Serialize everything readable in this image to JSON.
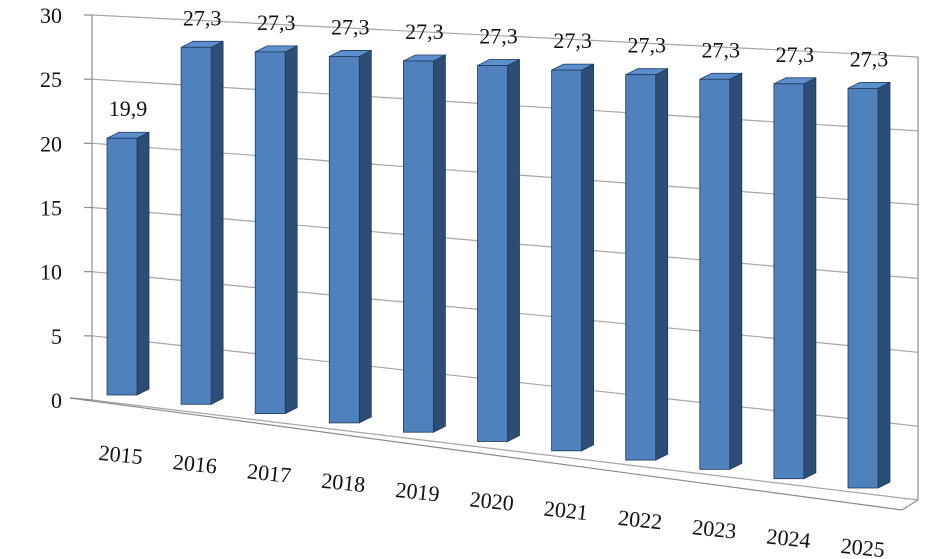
{
  "chart_data": {
    "type": "bar",
    "style": "3d-column",
    "categories": [
      "2015",
      "2016",
      "2017",
      "2018",
      "2019",
      "2020",
      "2021",
      "2022",
      "2023",
      "2024",
      "2025"
    ],
    "values": [
      19.9,
      27.3,
      27.3,
      27.3,
      27.3,
      27.3,
      27.3,
      27.3,
      27.3,
      27.3,
      27.3
    ],
    "data_labels": [
      "19,9",
      "27,3",
      "27,3",
      "27,3",
      "27,3",
      "27,3",
      "27,3",
      "27,3",
      "27,3",
      "27,3",
      "27,3"
    ],
    "y_ticks": [
      0,
      5,
      10,
      15,
      20,
      25,
      30
    ],
    "ylim": [
      0,
      30
    ],
    "grid": true,
    "legend": "none",
    "title": "",
    "xlabel": "",
    "ylabel": "",
    "colors": {
      "bar_front": "#4f81bd",
      "bar_side": "#2c4d75",
      "bar_top": "#5d8fcf",
      "grid": "#a6a6a6"
    }
  }
}
